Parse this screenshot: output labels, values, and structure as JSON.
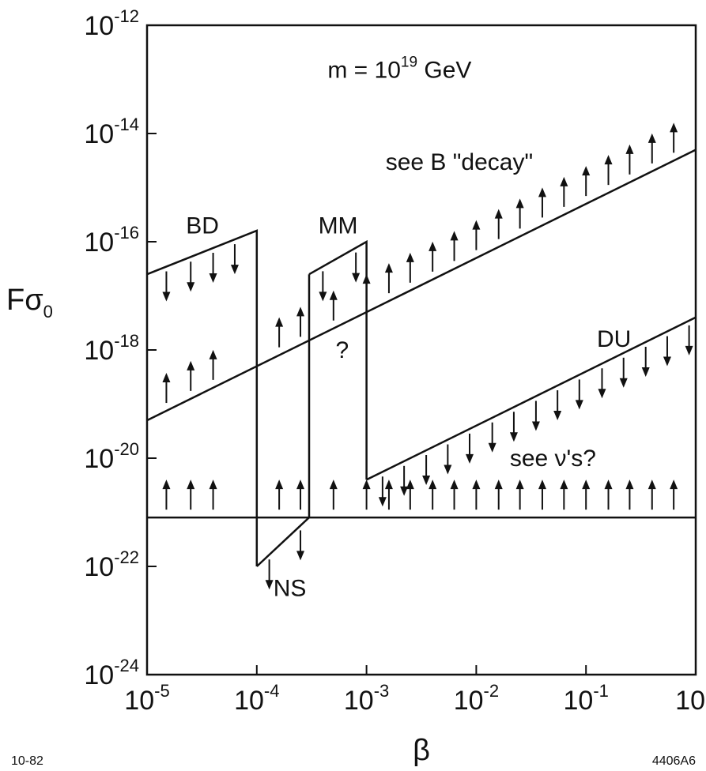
{
  "chart_data": {
    "type": "line",
    "x_scale": "log",
    "y_scale": "log",
    "xlim": [
      1e-05,
      1
    ],
    "ylim": [
      1e-24,
      1e-12
    ],
    "xlabel": "β",
    "ylabel": "Fσ0",
    "ylabel_main": "Fσ",
    "ylabel_sub": "0",
    "grid": false,
    "x_ticks": [
      {
        "value": 1e-05,
        "base": "10",
        "exp": "-5"
      },
      {
        "value": 0.0001,
        "base": "10",
        "exp": "-4"
      },
      {
        "value": 0.001,
        "base": "10",
        "exp": "-3"
      },
      {
        "value": 0.01,
        "base": "10",
        "exp": "-2"
      },
      {
        "value": 0.1,
        "base": "10",
        "exp": "-1"
      },
      {
        "value": 1,
        "base": "10",
        "exp": ""
      }
    ],
    "y_ticks": [
      {
        "value": 1e-12,
        "base": "10",
        "exp": "-12"
      },
      {
        "value": 1e-14,
        "base": "10",
        "exp": "-14"
      },
      {
        "value": 1e-16,
        "base": "10",
        "exp": "-16"
      },
      {
        "value": 1e-18,
        "base": "10",
        "exp": "-18"
      },
      {
        "value": 1e-20,
        "base": "10",
        "exp": "-20"
      },
      {
        "value": 1e-22,
        "base": "10",
        "exp": "-22"
      },
      {
        "value": 1e-24,
        "base": "10",
        "exp": "-24"
      }
    ],
    "series": [
      {
        "name": "BD",
        "arrows": "down",
        "x": [
          1e-05,
          0.0001,
          0.0001
        ],
        "y": [
          2.5e-17,
          1.6e-16,
          1e-22
        ],
        "arrows_x": [
          1.5e-05,
          2.5e-05,
          4e-05,
          6.3e-05
        ]
      },
      {
        "name": "NS",
        "arrows": "down",
        "x": [
          0.0001,
          0.0003,
          0.0003
        ],
        "y": [
          1e-22,
          8e-22,
          2.5e-17
        ],
        "arrows_x": [
          0.00013,
          0.00025
        ]
      },
      {
        "name": "MM",
        "arrows": "down",
        "x": [
          0.0003,
          0.001,
          0.001
        ],
        "y": [
          2.5e-17,
          1e-16,
          4e-21
        ],
        "arrows_x": [
          0.0004,
          0.0008
        ]
      },
      {
        "name": "DU",
        "arrows": "down",
        "x": [
          0.001,
          1
        ],
        "y": [
          4e-21,
          4e-18
        ],
        "arrows_x": [
          0.0014,
          0.0022,
          0.0035,
          0.0055,
          0.0087,
          0.014,
          0.022,
          0.035,
          0.055,
          0.087,
          0.14,
          0.22,
          0.35,
          0.55,
          0.87
        ]
      },
      {
        "name": "see B \"decay\"",
        "arrows": "up",
        "x": [
          1e-05,
          1
        ],
        "y": [
          5e-20,
          5e-15
        ],
        "arrows_x": [
          1.5e-05,
          2.5e-05,
          4e-05,
          0.00016,
          0.00025,
          0.0005,
          0.001,
          0.0016,
          0.0025,
          0.004,
          0.0063,
          0.01,
          0.016,
          0.025,
          0.04,
          0.063,
          0.1,
          0.16,
          0.25,
          0.4,
          0.63
        ]
      },
      {
        "name": "see ν's?",
        "arrows": "up",
        "x": [
          1e-05,
          1
        ],
        "y": [
          8e-22,
          8e-22
        ],
        "arrows_x": [
          1.5e-05,
          2.5e-05,
          4e-05,
          0.00016,
          0.00025,
          0.0005,
          0.001,
          0.0016,
          0.0025,
          0.004,
          0.0063,
          0.01,
          0.016,
          0.025,
          0.04,
          0.063,
          0.1,
          0.16,
          0.25,
          0.4,
          0.63
        ]
      }
    ],
    "annotations": [
      {
        "text_pre": "m = 10",
        "sup": "19",
        "text_post": " GeV",
        "x": 0.002,
        "y": 1.5e-13
      },
      {
        "text": "see B \"decay\"",
        "x": 0.007,
        "y": 3e-15
      },
      {
        "text": "BD",
        "x": 3.2e-05,
        "y": 2e-16
      },
      {
        "text": "MM",
        "x": 0.00055,
        "y": 2e-16
      },
      {
        "text": "DU",
        "x": 0.18,
        "y": 1.6e-18
      },
      {
        "text": "?",
        "x": 0.0006,
        "y": 1e-18
      },
      {
        "text": "NS",
        "x": 0.0002,
        "y": 4e-23
      },
      {
        "text": "see ν's?",
        "x": 0.05,
        "y": 1e-20
      }
    ]
  },
  "footer": {
    "left_code": "10-82",
    "right_code": "4406A6"
  }
}
